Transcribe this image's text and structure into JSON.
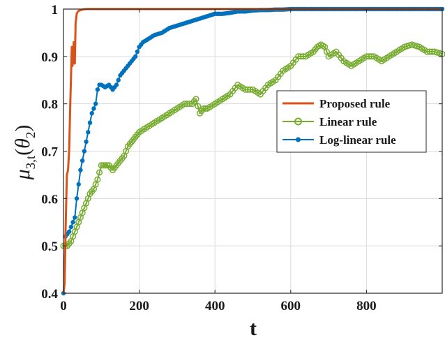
{
  "chart_data": {
    "type": "line",
    "title": "",
    "xlabel": "t",
    "ylabel_main": "μ",
    "ylabel_sub": "3,t",
    "ylabel_arg_open": "(",
    "ylabel_arg_theta": "θ",
    "ylabel_arg_sub": "2",
    "ylabel_arg_close": ")",
    "xlim": [
      0,
      1000
    ],
    "ylim": [
      0.4,
      1.0
    ],
    "xticks": [
      0,
      200,
      400,
      600,
      800
    ],
    "xtick_labels": [
      "0",
      "200",
      "400",
      "600",
      "800"
    ],
    "yticks": [
      0.4,
      0.5,
      0.6,
      0.7,
      0.8,
      0.9,
      1.0
    ],
    "ytick_labels": [
      "0.4",
      "0.5",
      "0.6",
      "0.7",
      "0.8",
      "0.9",
      "1"
    ],
    "grid": true,
    "legend_position": "center-right",
    "series": [
      {
        "name": "Proposed rule",
        "color": "#d95319",
        "marker": "none",
        "x": [
          0,
          3,
          6,
          9,
          12,
          15,
          18,
          20,
          22,
          24,
          26,
          27,
          28,
          30,
          32,
          35,
          38,
          42,
          50,
          60,
          80,
          120,
          200,
          400,
          600,
          800,
          1000
        ],
        "y": [
          0.4,
          0.42,
          0.55,
          0.65,
          0.66,
          0.7,
          0.8,
          0.86,
          0.92,
          0.88,
          0.9,
          0.93,
          0.89,
          0.885,
          0.97,
          0.99,
          0.995,
          0.997,
          0.999,
          1.0,
          1.0,
          1.0,
          1.0,
          1.0,
          1.0,
          1.0,
          1.0
        ]
      },
      {
        "name": "Linear rule",
        "color": "#77ac30",
        "marker": "circle",
        "x": [
          0,
          10,
          20,
          30,
          40,
          50,
          60,
          70,
          80,
          90,
          100,
          110,
          120,
          130,
          140,
          150,
          160,
          170,
          180,
          190,
          200,
          220,
          240,
          260,
          280,
          300,
          320,
          340,
          350,
          360,
          370,
          380,
          400,
          420,
          440,
          460,
          480,
          500,
          520,
          540,
          560,
          580,
          600,
          620,
          640,
          660,
          670,
          680,
          690,
          700,
          720,
          740,
          760,
          780,
          800,
          820,
          840,
          860,
          880,
          900,
          920,
          940,
          960,
          980,
          1000
        ],
        "y": [
          0.5,
          0.5,
          0.51,
          0.53,
          0.55,
          0.57,
          0.59,
          0.61,
          0.62,
          0.64,
          0.67,
          0.67,
          0.67,
          0.66,
          0.67,
          0.68,
          0.69,
          0.71,
          0.72,
          0.73,
          0.74,
          0.75,
          0.76,
          0.77,
          0.78,
          0.79,
          0.8,
          0.8,
          0.81,
          0.78,
          0.79,
          0.79,
          0.8,
          0.81,
          0.82,
          0.84,
          0.83,
          0.83,
          0.82,
          0.84,
          0.85,
          0.87,
          0.88,
          0.9,
          0.9,
          0.91,
          0.92,
          0.925,
          0.92,
          0.9,
          0.91,
          0.89,
          0.88,
          0.89,
          0.9,
          0.9,
          0.89,
          0.9,
          0.91,
          0.92,
          0.925,
          0.92,
          0.91,
          0.91,
          0.905
        ]
      },
      {
        "name": "Log-linear rule",
        "color": "#0072bd",
        "marker": "dot",
        "x": [
          0,
          5,
          10,
          15,
          20,
          25,
          30,
          35,
          40,
          45,
          50,
          55,
          60,
          65,
          70,
          75,
          80,
          85,
          90,
          95,
          100,
          110,
          120,
          130,
          140,
          150,
          160,
          170,
          180,
          190,
          200,
          210,
          220,
          230,
          240,
          260,
          280,
          300,
          320,
          340,
          360,
          380,
          400,
          420,
          440,
          460,
          480,
          500,
          520,
          540,
          560,
          580,
          600,
          650,
          700,
          800,
          900,
          1000
        ],
        "y": [
          0.4,
          0.52,
          0.525,
          0.53,
          0.54,
          0.55,
          0.56,
          0.6,
          0.63,
          0.66,
          0.68,
          0.7,
          0.72,
          0.74,
          0.76,
          0.78,
          0.79,
          0.8,
          0.83,
          0.84,
          0.84,
          0.835,
          0.84,
          0.83,
          0.84,
          0.86,
          0.87,
          0.88,
          0.89,
          0.9,
          0.92,
          0.93,
          0.935,
          0.94,
          0.945,
          0.95,
          0.96,
          0.965,
          0.97,
          0.975,
          0.98,
          0.985,
          0.99,
          0.99,
          0.992,
          0.995,
          0.995,
          0.997,
          0.998,
          0.998,
          0.999,
          0.999,
          1.0,
          1.0,
          1.0,
          1.0,
          1.0,
          1.0
        ]
      }
    ]
  }
}
